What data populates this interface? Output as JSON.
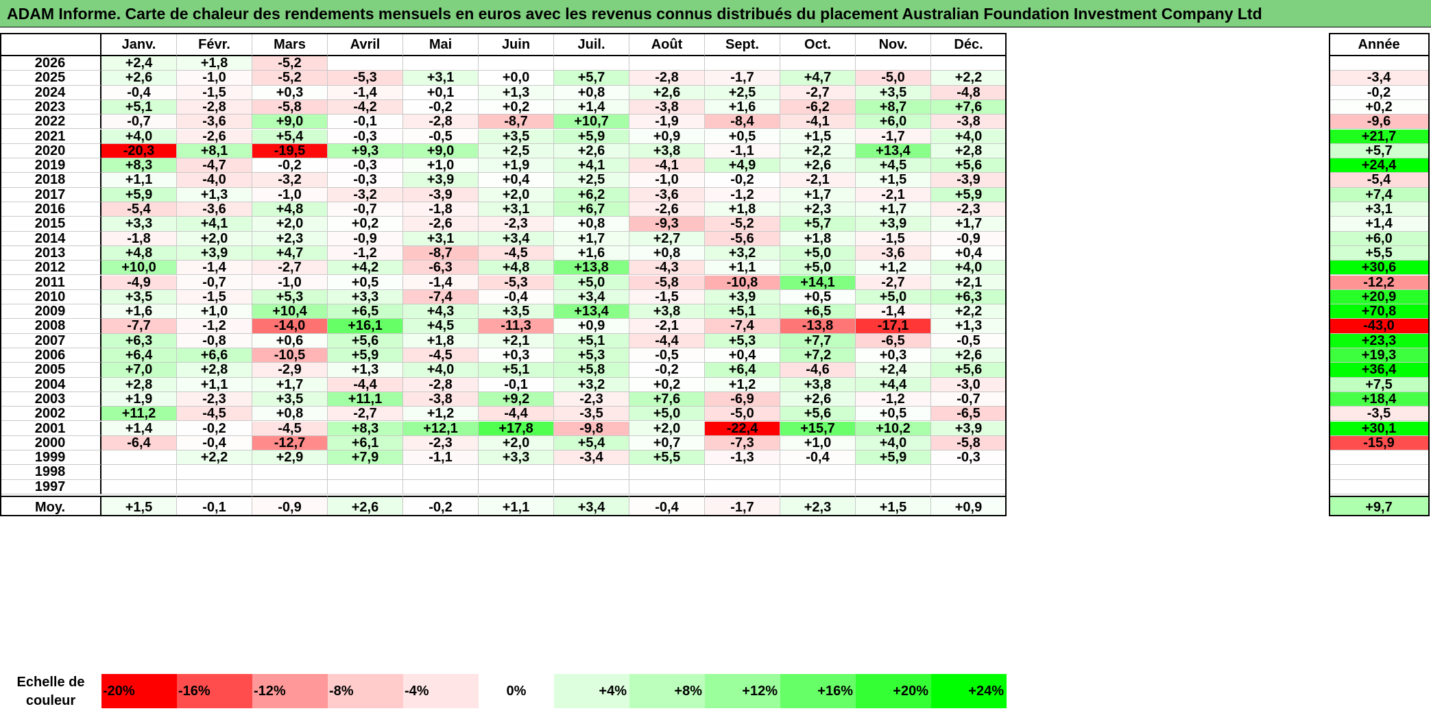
{
  "title": "ADAM Informe. Carte de chaleur des rendements mensuels en euros avec les revenus connus distribués du placement Australian Foundation Investment Company Ltd",
  "chart_data": {
    "type": "heatmap",
    "months": [
      "Janv.",
      "Févr.",
      "Mars",
      "Avril",
      "Mai",
      "Juin",
      "Juil.",
      "Août",
      "Sept.",
      "Oct.",
      "Nov.",
      "Déc."
    ],
    "year_header": "Année",
    "rows": [
      {
        "year": "2026",
        "values": [
          2.4,
          1.8,
          -5.2,
          null,
          null,
          null,
          null,
          null,
          null,
          null,
          null,
          null
        ],
        "annual": null
      },
      {
        "year": "2025",
        "values": [
          2.6,
          -1.0,
          -5.2,
          -5.3,
          3.1,
          0.0,
          5.7,
          -2.8,
          -1.7,
          4.7,
          -5.0,
          2.2
        ],
        "annual": -3.4
      },
      {
        "year": "2024",
        "values": [
          -0.4,
          -1.5,
          0.3,
          -1.4,
          0.1,
          1.3,
          0.8,
          2.6,
          2.5,
          -2.7,
          3.5,
          -4.8
        ],
        "annual": -0.2
      },
      {
        "year": "2023",
        "values": [
          5.1,
          -2.8,
          -5.8,
          -4.2,
          -0.2,
          0.2,
          1.4,
          -3.8,
          1.6,
          -6.2,
          8.7,
          7.6
        ],
        "annual": 0.2
      },
      {
        "year": "2022",
        "values": [
          -0.7,
          -3.6,
          9.0,
          -0.1,
          -2.8,
          -8.7,
          10.7,
          -1.9,
          -8.4,
          -4.1,
          6.0,
          -3.8
        ],
        "annual": -9.6
      },
      {
        "year": "2021",
        "values": [
          4.0,
          -2.6,
          5.4,
          -0.3,
          -0.5,
          3.5,
          5.9,
          0.9,
          0.5,
          1.5,
          -1.7,
          4.0
        ],
        "annual": 21.7
      },
      {
        "year": "2020",
        "values": [
          -20.3,
          8.1,
          -19.5,
          9.3,
          9.0,
          2.5,
          2.6,
          3.8,
          -1.1,
          2.2,
          13.4,
          2.8
        ],
        "annual": 5.7
      },
      {
        "year": "2019",
        "values": [
          8.3,
          -4.7,
          -0.2,
          -0.3,
          1.0,
          1.9,
          4.1,
          -4.1,
          4.9,
          2.6,
          4.5,
          5.6
        ],
        "annual": 24.4
      },
      {
        "year": "2018",
        "values": [
          1.1,
          -4.0,
          -3.2,
          -0.3,
          3.9,
          0.4,
          2.5,
          -1.0,
          -0.2,
          -2.1,
          1.5,
          -3.9
        ],
        "annual": -5.4
      },
      {
        "year": "2017",
        "values": [
          5.9,
          1.3,
          -1.0,
          -3.2,
          -3.9,
          2.0,
          6.2,
          -3.6,
          -1.2,
          1.7,
          -2.1,
          5.9
        ],
        "annual": 7.4
      },
      {
        "year": "2016",
        "values": [
          -5.4,
          -3.6,
          4.8,
          -0.7,
          -1.8,
          3.1,
          6.7,
          -2.6,
          1.8,
          2.3,
          1.7,
          -2.3
        ],
        "annual": 3.1
      },
      {
        "year": "2015",
        "values": [
          3.3,
          4.1,
          2.0,
          0.2,
          -2.6,
          -2.3,
          0.8,
          -9.3,
          -5.2,
          5.7,
          3.9,
          1.7
        ],
        "annual": 1.4
      },
      {
        "year": "2014",
        "values": [
          -1.8,
          2.0,
          2.3,
          -0.9,
          3.1,
          3.4,
          1.7,
          2.7,
          -5.6,
          1.8,
          -1.5,
          -0.9
        ],
        "annual": 6.0
      },
      {
        "year": "2013",
        "values": [
          4.8,
          3.9,
          4.7,
          -1.2,
          -8.7,
          -4.5,
          1.6,
          0.8,
          3.2,
          5.0,
          -3.6,
          0.4
        ],
        "annual": 5.5
      },
      {
        "year": "2012",
        "values": [
          10.0,
          -1.4,
          -2.7,
          4.2,
          -6.3,
          4.8,
          13.8,
          -4.3,
          1.1,
          5.0,
          1.2,
          4.0
        ],
        "annual": 30.6
      },
      {
        "year": "2011",
        "values": [
          -4.9,
          -0.7,
          -1.0,
          0.5,
          -1.4,
          -5.3,
          5.0,
          -5.8,
          -10.8,
          14.1,
          -2.7,
          2.1
        ],
        "annual": -12.2
      },
      {
        "year": "2010",
        "values": [
          3.5,
          -1.5,
          5.3,
          3.3,
          -7.4,
          -0.4,
          3.4,
          -1.5,
          3.9,
          0.5,
          5.0,
          6.3
        ],
        "annual": 20.9
      },
      {
        "year": "2009",
        "values": [
          1.6,
          1.0,
          10.4,
          6.5,
          4.3,
          3.5,
          13.4,
          3.8,
          5.1,
          6.5,
          -1.4,
          2.2
        ],
        "annual": 70.8
      },
      {
        "year": "2008",
        "values": [
          -7.7,
          -1.2,
          -14.0,
          16.1,
          4.5,
          -11.3,
          0.9,
          -2.1,
          -7.4,
          -13.8,
          -17.1,
          1.3
        ],
        "annual": -43.0
      },
      {
        "year": "2007",
        "values": [
          6.3,
          -0.8,
          0.6,
          5.6,
          1.8,
          2.1,
          5.1,
          -4.4,
          5.3,
          7.7,
          -6.5,
          -0.5
        ],
        "annual": 23.3
      },
      {
        "year": "2006",
        "values": [
          6.4,
          6.6,
          -10.5,
          5.9,
          -4.5,
          0.3,
          5.3,
          -0.5,
          0.4,
          7.2,
          0.3,
          2.6
        ],
        "annual": 19.3
      },
      {
        "year": "2005",
        "values": [
          7.0,
          2.8,
          -2.9,
          1.3,
          4.0,
          5.1,
          5.8,
          -0.2,
          6.4,
          -4.6,
          2.4,
          5.6
        ],
        "annual": 36.4
      },
      {
        "year": "2004",
        "values": [
          2.8,
          1.1,
          1.7,
          -4.4,
          -2.8,
          -0.1,
          3.2,
          0.2,
          1.2,
          3.8,
          4.4,
          -3.0
        ],
        "annual": 7.5
      },
      {
        "year": "2003",
        "values": [
          1.9,
          -2.3,
          3.5,
          11.1,
          -3.8,
          9.2,
          -2.3,
          7.6,
          -6.9,
          2.6,
          -1.2,
          -0.7
        ],
        "annual": 18.4
      },
      {
        "year": "2002",
        "values": [
          11.2,
          -4.5,
          0.8,
          -2.7,
          1.2,
          -4.4,
          -3.5,
          5.0,
          -5.0,
          5.6,
          0.5,
          -6.5
        ],
        "annual": -3.5
      },
      {
        "year": "2001",
        "values": [
          1.4,
          -0.2,
          -4.5,
          8.3,
          12.1,
          17.8,
          -9.8,
          2.0,
          -22.4,
          15.7,
          10.2,
          3.9
        ],
        "annual": 30.1
      },
      {
        "year": "2000",
        "values": [
          -6.4,
          -0.4,
          -12.7,
          6.1,
          -2.3,
          2.0,
          5.4,
          0.7,
          -7.3,
          1.0,
          4.0,
          -5.8
        ],
        "annual": -15.9
      },
      {
        "year": "1999",
        "values": [
          null,
          2.2,
          2.9,
          7.9,
          -1.1,
          3.3,
          -3.4,
          5.5,
          -1.3,
          -0.4,
          5.9,
          -0.3
        ],
        "annual": null
      },
      {
        "year": "1998",
        "values": [
          null,
          null,
          null,
          null,
          null,
          null,
          null,
          null,
          null,
          null,
          null,
          null
        ],
        "annual": null
      },
      {
        "year": "1997",
        "values": [
          null,
          null,
          null,
          null,
          null,
          null,
          null,
          null,
          null,
          null,
          null,
          null
        ],
        "annual": null
      }
    ],
    "average": {
      "label": "Moy.",
      "values": [
        1.5,
        -0.1,
        -0.9,
        2.6,
        -0.2,
        1.1,
        3.4,
        -0.4,
        -1.7,
        2.3,
        1.5,
        0.9
      ],
      "annual": 9.7
    },
    "scale": {
      "label": "Echelle de couleur",
      "steps": [
        {
          "label": "-20%",
          "value": -20
        },
        {
          "label": "-16%",
          "value": -16
        },
        {
          "label": "-12%",
          "value": -12
        },
        {
          "label": "-8%",
          "value": -8
        },
        {
          "label": "-4%",
          "value": -4
        },
        {
          "label": "0%",
          "value": 0
        },
        {
          "label": "+4%",
          "value": 4
        },
        {
          "label": "+8%",
          "value": 8
        },
        {
          "label": "+12%",
          "value": 12
        },
        {
          "label": "+16%",
          "value": 16
        },
        {
          "label": "+20%",
          "value": 20
        },
        {
          "label": "+24%",
          "value": 24
        }
      ]
    },
    "colors": {
      "negative_max": "#ff0000",
      "positive_max": "#00ff00",
      "neutral": "#ffffff",
      "title_bg": "#7fd07f"
    }
  }
}
